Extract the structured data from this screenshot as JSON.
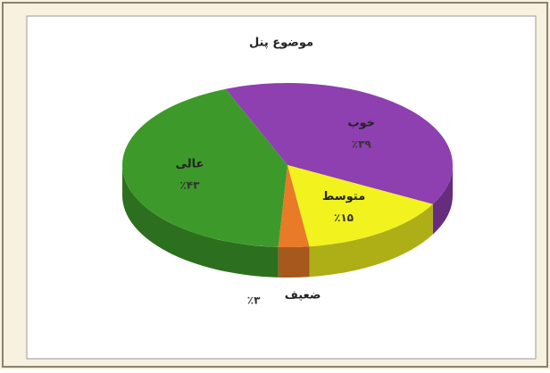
{
  "chart_data": {
    "type": "pie3d",
    "title": "موضوع پنل",
    "categories": [
      "خوب",
      "متوسط",
      "ضعیف",
      "عالی"
    ],
    "values": [
      39,
      15,
      3,
      43
    ],
    "value_labels": [
      "٪۳۹",
      "٪۱۵",
      "٪۳",
      "٪۴۳"
    ],
    "colors": [
      "#8e3fb0",
      "#f2f21e",
      "#e87a28",
      "#3d9a2a"
    ]
  }
}
